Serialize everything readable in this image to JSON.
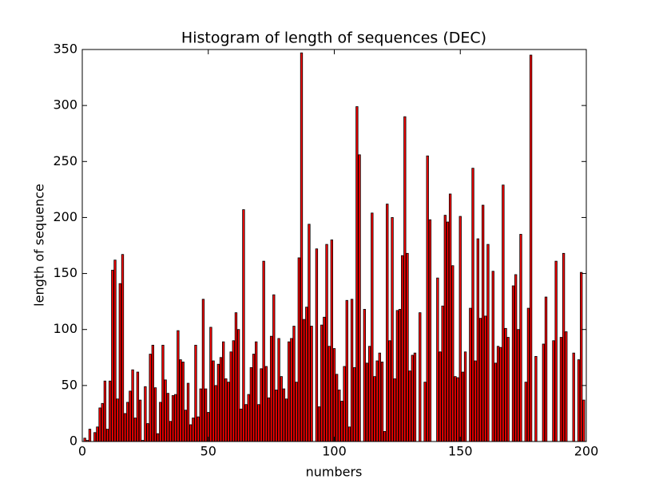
{
  "chart_data": {
    "type": "bar",
    "title": "Histogram of length of sequences (DEC)",
    "x_label": "numbers",
    "y_label": "length of sequence",
    "color": "#ff0000",
    "xlim": [
      0,
      200
    ],
    "xticks": [
      0,
      50,
      100,
      150,
      200
    ],
    "ylim": [
      0,
      350
    ],
    "yticks": [
      0,
      50,
      100,
      150,
      200,
      250,
      300,
      350
    ],
    "x": [
      1,
      2,
      3,
      4,
      5,
      6,
      7,
      8,
      9,
      10,
      11,
      12,
      13,
      14,
      15,
      16,
      17,
      18,
      19,
      20,
      21,
      22,
      23,
      24,
      25,
      26,
      27,
      28,
      29,
      30,
      31,
      32,
      33,
      34,
      35,
      36,
      37,
      38,
      39,
      40,
      41,
      42,
      43,
      44,
      45,
      46,
      47,
      48,
      49,
      50,
      51,
      52,
      53,
      54,
      55,
      56,
      57,
      58,
      59,
      60,
      61,
      62,
      63,
      64,
      65,
      66,
      67,
      68,
      69,
      70,
      71,
      72,
      73,
      74,
      75,
      76,
      77,
      78,
      79,
      80,
      81,
      82,
      83,
      84,
      85,
      86,
      87,
      88,
      89,
      90,
      91,
      92,
      93,
      94,
      95,
      96,
      97,
      98,
      99,
      100,
      101,
      102,
      103,
      104,
      105,
      106,
      107,
      108,
      109,
      110,
      111,
      112,
      113,
      114,
      115,
      116,
      117,
      118,
      119,
      120,
      121,
      122,
      123,
      124,
      125,
      126,
      127,
      128,
      129,
      130,
      131,
      132,
      133,
      134,
      135,
      136,
      137,
      138,
      139,
      140,
      141,
      142,
      143,
      144,
      145,
      146,
      147,
      148,
      149,
      150,
      151,
      152,
      153,
      154,
      155,
      156,
      157,
      158,
      159,
      160,
      161,
      162,
      163,
      164,
      165,
      166,
      167,
      168,
      169,
      170,
      171,
      172,
      173,
      174,
      175,
      176,
      177,
      178,
      179,
      180,
      181,
      182,
      183,
      184,
      185,
      186,
      187,
      188,
      189,
      190,
      191,
      192,
      193,
      194,
      195,
      196,
      197,
      198,
      199
    ],
    "values": [
      3,
      1,
      11,
      0,
      8,
      13,
      30,
      34,
      54,
      11,
      54,
      153,
      162,
      38,
      141,
      167,
      25,
      35,
      45,
      64,
      21,
      62,
      37,
      1,
      49,
      16,
      78,
      86,
      48,
      7,
      35,
      86,
      55,
      43,
      18,
      41,
      42,
      99,
      73,
      71,
      28,
      52,
      15,
      21,
      86,
      22,
      47,
      127,
      47,
      26,
      102,
      72,
      50,
      69,
      75,
      89,
      56,
      53,
      80,
      90,
      115,
      100,
      29,
      207,
      33,
      42,
      66,
      78,
      89,
      33,
      65,
      161,
      67,
      39,
      94,
      131,
      46,
      92,
      58,
      47,
      38,
      89,
      92,
      103,
      53,
      164,
      347,
      109,
      120,
      194,
      103,
      0,
      172,
      31,
      104,
      111,
      176,
      85,
      180,
      83,
      60,
      46,
      36,
      67,
      126,
      13,
      127,
      66,
      299,
      256,
      0,
      118,
      70,
      85,
      204,
      58,
      72,
      79,
      71,
      9,
      212,
      90,
      200,
      56,
      117,
      118,
      166,
      290,
      168,
      63,
      77,
      79,
      0,
      115,
      0,
      53,
      255,
      198,
      0,
      0,
      146,
      80,
      121,
      202,
      196,
      221,
      157,
      58,
      57,
      201,
      62,
      80,
      0,
      119,
      244,
      72,
      181,
      110,
      211,
      112,
      176,
      0,
      152,
      70,
      85,
      84,
      229,
      101,
      93,
      0,
      139,
      149,
      100,
      185,
      0,
      53,
      119,
      345,
      0,
      76,
      0,
      0,
      87,
      129,
      0,
      0,
      90,
      161,
      0,
      93,
      168,
      98,
      0,
      0,
      79,
      0,
      73,
      151,
      37
    ]
  }
}
